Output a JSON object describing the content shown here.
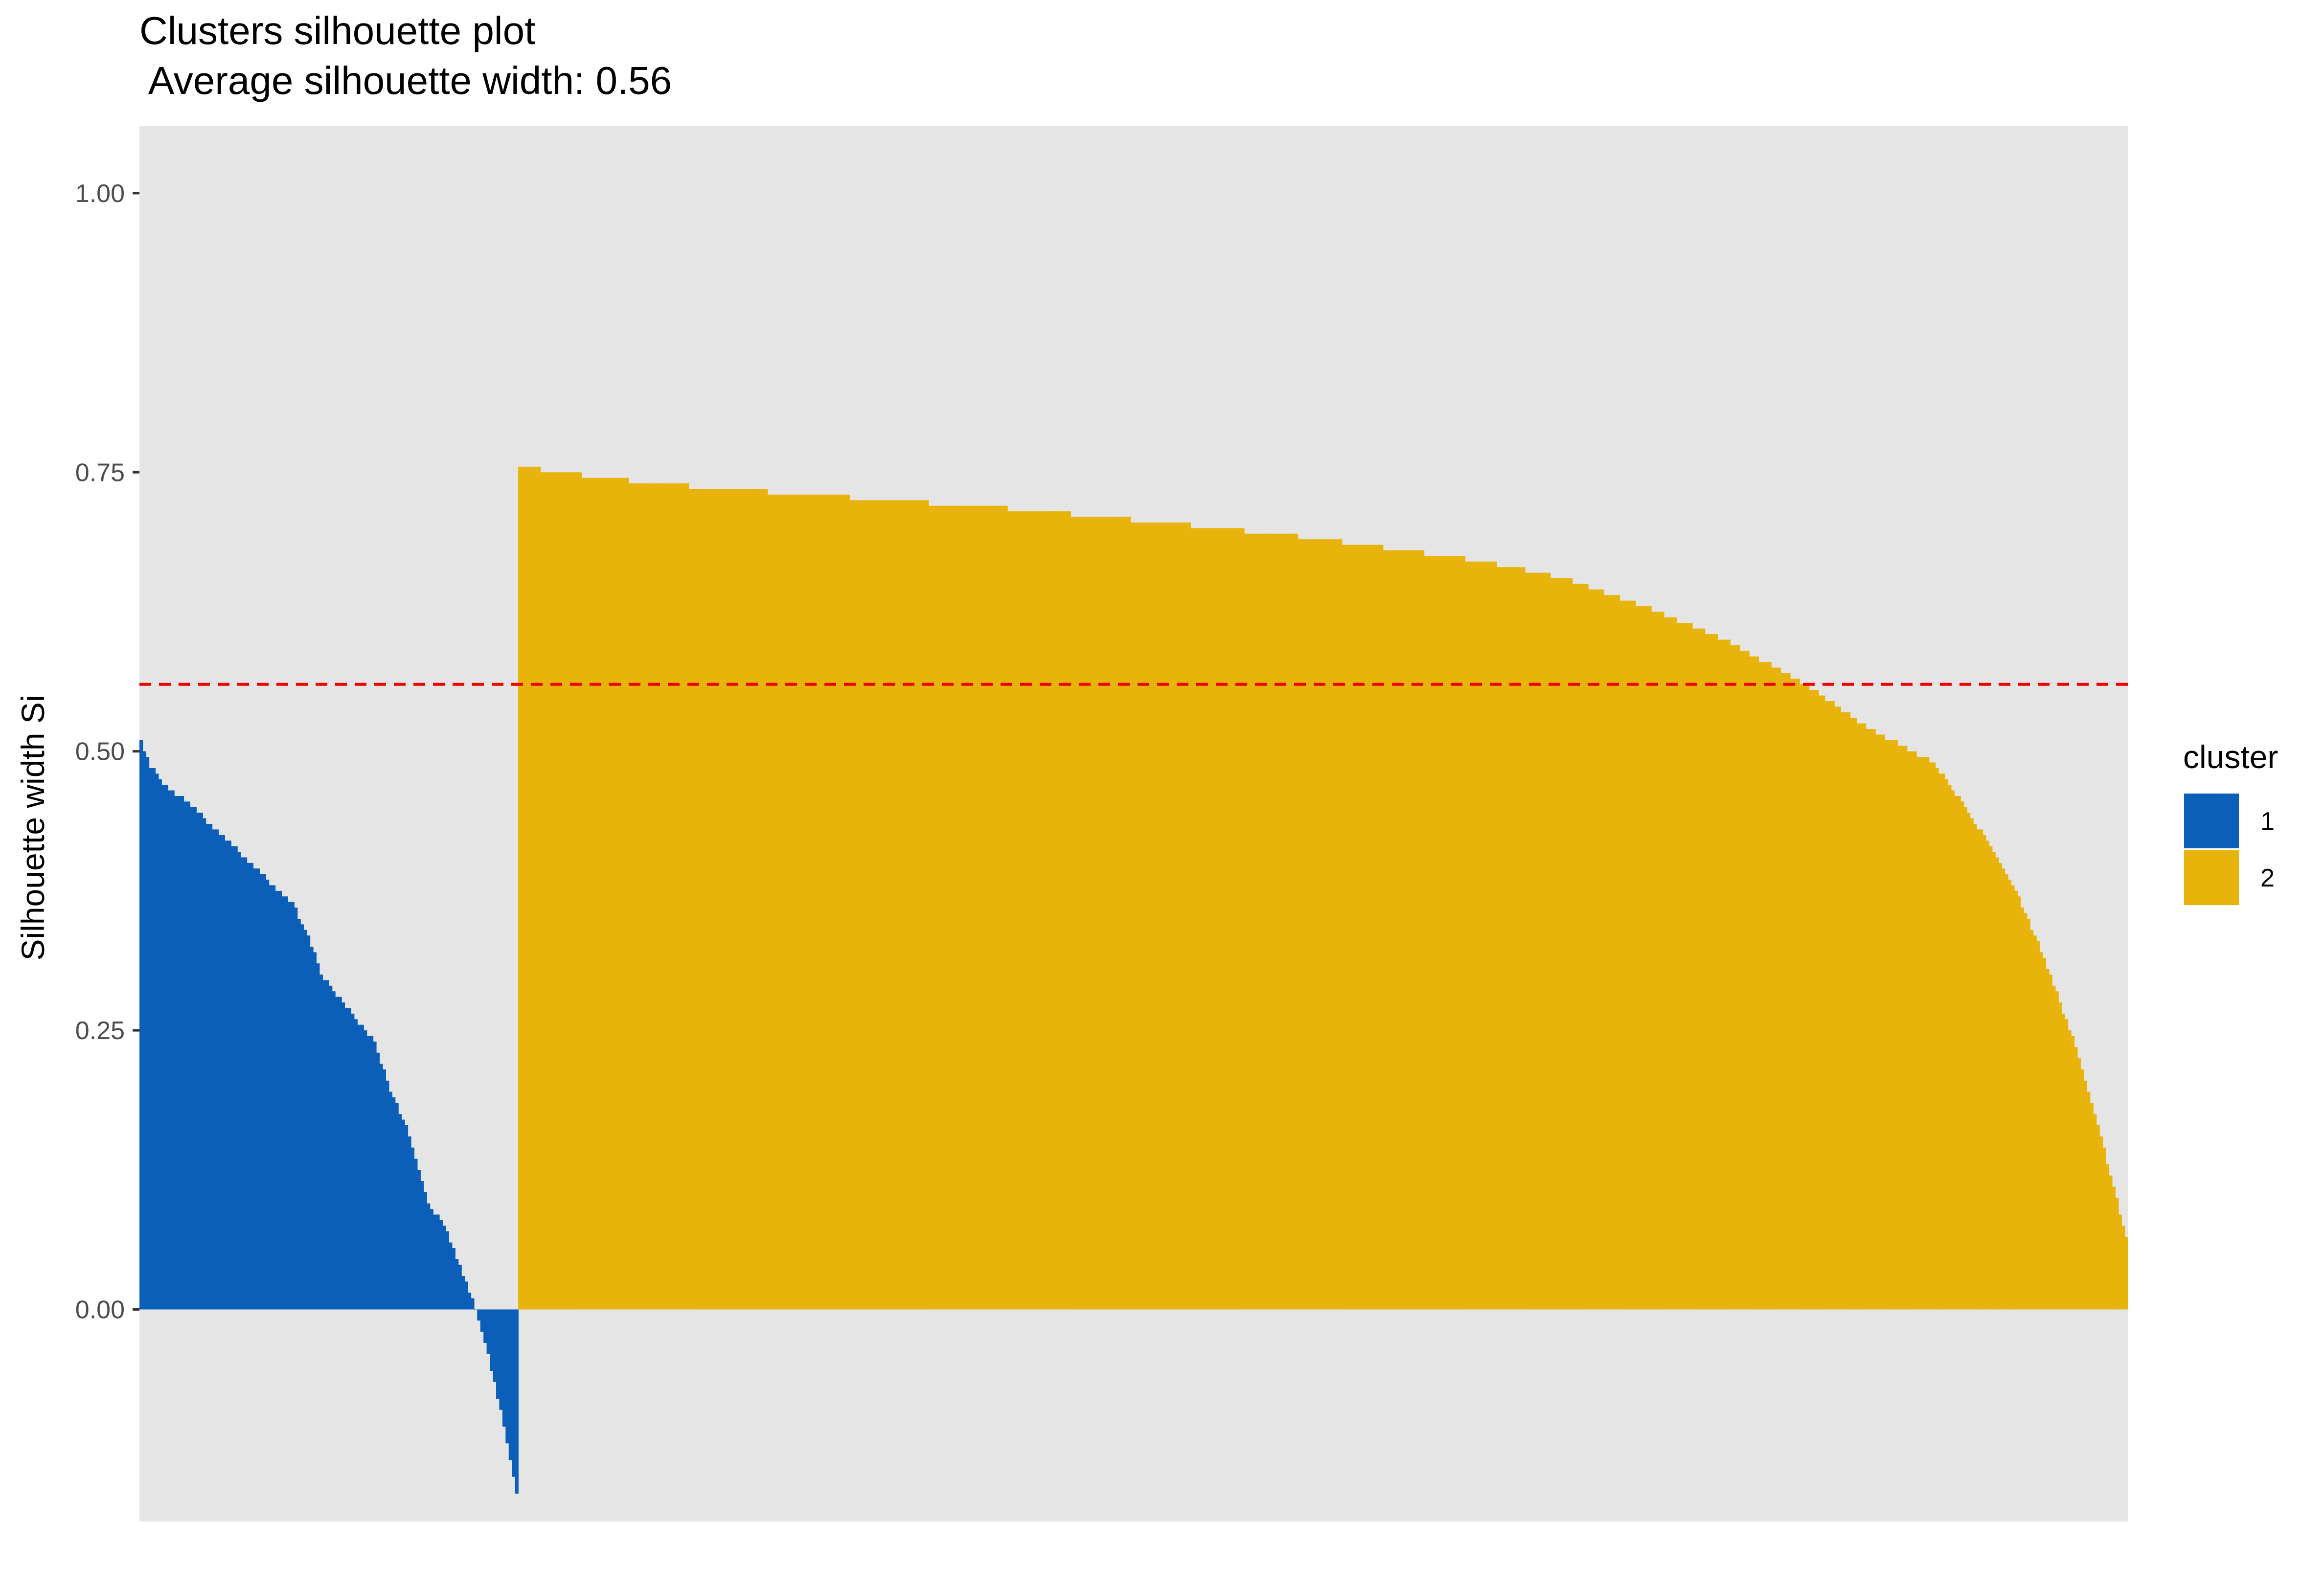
{
  "chart_data": {
    "type": "bar",
    "title": "Clusters silhouette plot",
    "subtitle": " Average silhouette width: 0.56",
    "xlabel": "",
    "ylabel": "Silhouette width Si",
    "ylim": [
      -0.19,
      1.06
    ],
    "yticks": [
      "0.00",
      "0.25",
      "0.50",
      "0.75",
      "1.00"
    ],
    "grid": false,
    "average_line": {
      "value": 0.56,
      "color": "#ee0000",
      "style": "dashed"
    },
    "legend": {
      "title": "cluster",
      "position": "right",
      "entries": [
        {
          "label": "1",
          "color": "#0c5fb9"
        },
        {
          "label": "2",
          "color": "#e8b40b"
        }
      ]
    },
    "series": [
      {
        "name": "1",
        "color": "#0c5fb9",
        "count": 120,
        "profile": [
          [
            0,
            0.51
          ],
          [
            0.02,
            0.49
          ],
          [
            0.06,
            0.47
          ],
          [
            0.12,
            0.455
          ],
          [
            0.2,
            0.43
          ],
          [
            0.26,
            0.41
          ],
          [
            0.32,
            0.39
          ],
          [
            0.4,
            0.365
          ],
          [
            0.44,
            0.34
          ],
          [
            0.48,
            0.3
          ],
          [
            0.55,
            0.27
          ],
          [
            0.62,
            0.24
          ],
          [
            0.66,
            0.2
          ],
          [
            0.71,
            0.16
          ],
          [
            0.76,
            0.1
          ],
          [
            0.82,
            0.065
          ],
          [
            0.87,
            0.02
          ],
          [
            0.9,
            -0.01
          ],
          [
            0.93,
            -0.05
          ],
          [
            0.97,
            -0.11
          ],
          [
            1,
            -0.165
          ]
        ]
      },
      {
        "name": "2",
        "color": "#e8b40b",
        "count": 510,
        "profile": [
          [
            0,
            0.755
          ],
          [
            0.05,
            0.745
          ],
          [
            0.1,
            0.738
          ],
          [
            0.2,
            0.728
          ],
          [
            0.3,
            0.718
          ],
          [
            0.4,
            0.705
          ],
          [
            0.5,
            0.69
          ],
          [
            0.6,
            0.67
          ],
          [
            0.65,
            0.655
          ],
          [
            0.7,
            0.63
          ],
          [
            0.75,
            0.6
          ],
          [
            0.8,
            0.56
          ],
          [
            0.84,
            0.52
          ],
          [
            0.88,
            0.49
          ],
          [
            0.9,
            0.45
          ],
          [
            0.93,
            0.38
          ],
          [
            0.95,
            0.31
          ],
          [
            0.97,
            0.23
          ],
          [
            0.985,
            0.15
          ],
          [
            1,
            0.065
          ]
        ]
      }
    ]
  }
}
